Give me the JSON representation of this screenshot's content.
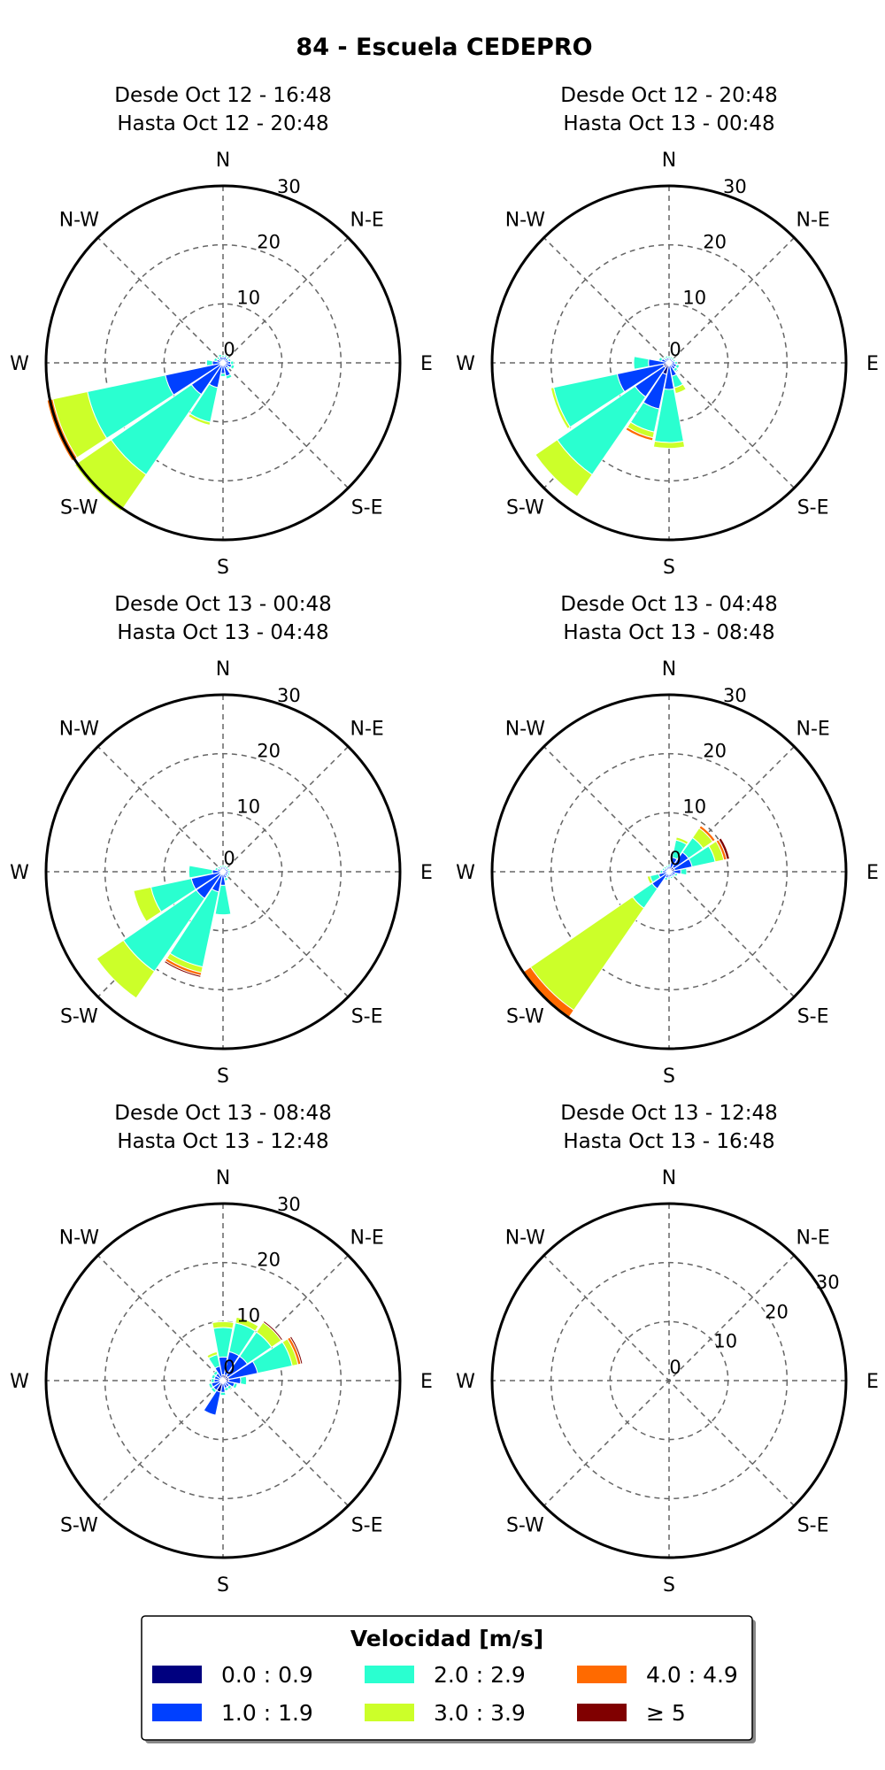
{
  "title": "84 - Escuela CEDEPRO",
  "legend": {
    "title": "Velocidad [m/s]",
    "bins": [
      {
        "label": "0.0 : 0.9",
        "color": "#00007f"
      },
      {
        "label": "1.0 : 1.9",
        "color": "#0040ff"
      },
      {
        "label": "2.0 : 2.9",
        "color": "#2affd0"
      },
      {
        "label": "3.0 : 3.9",
        "color": "#ccff29"
      },
      {
        "label": "4.0 : 4.9",
        "color": "#ff6a00"
      },
      {
        "label": "≥ 5",
        "color": "#800000"
      }
    ]
  },
  "chart_data": [
    {
      "type": "windrose",
      "title_line1": "Desde Oct 12 - 16:48",
      "title_line2": "Hasta Oct 12 - 20:48",
      "directions": [
        "N",
        "N-E",
        "E",
        "S-E",
        "S",
        "S-W",
        "W",
        "N-W"
      ],
      "rmax": 30,
      "rticks": [
        "0",
        "10",
        "20",
        "30"
      ],
      "petals": [
        {
          "dir": 247.5,
          "segments": [
            0.5,
            9.5,
            13.5,
            6,
            1,
            0
          ]
        },
        {
          "dir": 225,
          "segments": [
            0.5,
            6,
            16.5,
            7.5,
            0,
            0
          ]
        },
        {
          "dir": 202.5,
          "segments": [
            0.3,
            4,
            6,
            0.5,
            0,
            0
          ]
        },
        {
          "dir": 270,
          "segments": [
            0.3,
            1.5,
            1,
            0,
            0,
            0
          ]
        },
        {
          "dir": 292.5,
          "segments": [
            0.3,
            0.8,
            0.5,
            0,
            0,
            0
          ]
        },
        {
          "dir": 315,
          "segments": [
            0.3,
            0.6,
            0.4,
            0,
            0,
            0
          ]
        },
        {
          "dir": 337.5,
          "segments": [
            0.3,
            0.8,
            0.4,
            0,
            0,
            0
          ]
        },
        {
          "dir": 0,
          "segments": [
            0.3,
            0.7,
            0.3,
            0,
            0,
            0
          ]
        },
        {
          "dir": 22.5,
          "segments": [
            0.3,
            0.8,
            0.3,
            0,
            0,
            0
          ]
        },
        {
          "dir": 45,
          "segments": [
            0.3,
            0.7,
            0.3,
            0,
            0,
            0
          ]
        },
        {
          "dir": 67.5,
          "segments": [
            0.3,
            0.7,
            0.4,
            0,
            0,
            0
          ]
        },
        {
          "dir": 90,
          "segments": [
            0.3,
            1,
            0.5,
            0,
            0,
            0
          ]
        },
        {
          "dir": 112.5,
          "segments": [
            0.3,
            1.2,
            0.5,
            0,
            0,
            0
          ]
        },
        {
          "dir": 135,
          "segments": [
            0.3,
            0.8,
            0.3,
            0,
            0,
            0
          ]
        },
        {
          "dir": 157.5,
          "segments": [
            0.3,
            2,
            0.5,
            0,
            0,
            0
          ]
        },
        {
          "dir": 180,
          "segments": [
            0.3,
            1.5,
            0.5,
            0,
            0,
            0
          ]
        }
      ]
    },
    {
      "type": "windrose",
      "title_line1": "Desde Oct 12 - 20:48",
      "title_line2": "Hasta Oct 13 - 00:48",
      "directions": [
        "N",
        "N-E",
        "E",
        "S-E",
        "S",
        "S-W",
        "W",
        "N-W"
      ],
      "rmax": 30,
      "rticks": [
        "0",
        "10",
        "20",
        "30"
      ],
      "petals": [
        {
          "dir": 225,
          "segments": [
            1,
            6,
            16,
            4.5,
            0,
            0
          ]
        },
        {
          "dir": 247.5,
          "segments": [
            1,
            8,
            11,
            0.5,
            0,
            0
          ]
        },
        {
          "dir": 202.5,
          "segments": [
            2,
            6,
            4,
            1,
            0.5,
            0
          ]
        },
        {
          "dir": 180,
          "segments": [
            0.5,
            4,
            9,
            1,
            0,
            0
          ]
        },
        {
          "dir": 270,
          "segments": [
            0.5,
            3,
            2.5,
            0,
            0,
            0
          ]
        },
        {
          "dir": 157.5,
          "segments": [
            0.3,
            2,
            2,
            1,
            0,
            0
          ]
        },
        {
          "dir": 135,
          "segments": [
            0.3,
            1,
            0.5,
            0,
            0,
            0
          ]
        },
        {
          "dir": 112.5,
          "segments": [
            0.3,
            1,
            0.5,
            0,
            0,
            0
          ]
        },
        {
          "dir": 292.5,
          "segments": [
            0.3,
            1,
            0.5,
            0,
            0,
            0
          ]
        },
        {
          "dir": 315,
          "segments": [
            0.3,
            0.6,
            0.3,
            0,
            0,
            0
          ]
        },
        {
          "dir": 337.5,
          "segments": [
            0.3,
            0.6,
            0.3,
            0,
            0,
            0
          ]
        },
        {
          "dir": 0,
          "segments": [
            0.3,
            0.5,
            0.3,
            0,
            0,
            0
          ]
        },
        {
          "dir": 22.5,
          "segments": [
            0.3,
            0.5,
            0.3,
            0,
            0,
            0
          ]
        },
        {
          "dir": 45,
          "segments": [
            0.3,
            0.5,
            0.3,
            0,
            0,
            0
          ]
        },
        {
          "dir": 67.5,
          "segments": [
            0.3,
            0.5,
            0.3,
            0,
            0,
            0
          ]
        },
        {
          "dir": 90,
          "segments": [
            0.3,
            0.7,
            0.4,
            0,
            0,
            0
          ]
        }
      ]
    },
    {
      "type": "windrose",
      "title_line1": "Desde Oct 13 - 00:48",
      "title_line2": "Hasta Oct 13 - 04:48",
      "directions": [
        "N",
        "N-E",
        "E",
        "S-E",
        "S",
        "S-W",
        "W",
        "N-W"
      ],
      "rmax": 30,
      "rticks": [
        "0",
        "10",
        "20",
        "30"
      ],
      "petals": [
        {
          "dir": 225,
          "segments": [
            0.5,
            5,
            15,
            5.5,
            0,
            0
          ]
        },
        {
          "dir": 202.5,
          "segments": [
            0.5,
            3,
            13,
            1,
            0.5,
            0.3
          ]
        },
        {
          "dir": 247.5,
          "segments": [
            0.5,
            5,
            7,
            3,
            0,
            0
          ]
        },
        {
          "dir": 270,
          "segments": [
            0.3,
            1.5,
            4,
            0,
            0,
            0
          ]
        },
        {
          "dir": 180,
          "segments": [
            0.3,
            2,
            5,
            0,
            0,
            0
          ]
        },
        {
          "dir": 157.5,
          "segments": [
            0.3,
            0.8,
            0.5,
            0,
            0,
            0
          ]
        },
        {
          "dir": 135,
          "segments": [
            0.3,
            0.6,
            0.3,
            0,
            0,
            0
          ]
        },
        {
          "dir": 112.5,
          "segments": [
            0.3,
            0.6,
            0.3,
            0,
            0,
            0
          ]
        },
        {
          "dir": 90,
          "segments": [
            0.3,
            0.6,
            0.3,
            0,
            0,
            0
          ]
        },
        {
          "dir": 67.5,
          "segments": [
            0.3,
            0.5,
            0.3,
            0,
            0,
            0
          ]
        },
        {
          "dir": 45,
          "segments": [
            0.3,
            0.5,
            0.3,
            0,
            0,
            0
          ]
        },
        {
          "dir": 22.5,
          "segments": [
            0.3,
            0.5,
            0.3,
            0,
            0,
            0
          ]
        },
        {
          "dir": 0,
          "segments": [
            0.3,
            0.5,
            0.3,
            0,
            0,
            0
          ]
        },
        {
          "dir": 337.5,
          "segments": [
            0.3,
            0.5,
            0.3,
            0,
            0,
            0
          ]
        },
        {
          "dir": 315,
          "segments": [
            0.3,
            0.5,
            0.3,
            0,
            0,
            0
          ]
        },
        {
          "dir": 292.5,
          "segments": [
            0.3,
            0.7,
            0.4,
            0,
            0,
            0
          ]
        }
      ]
    },
    {
      "type": "windrose",
      "title_line1": "Desde Oct 13 - 04:48",
      "title_line2": "Hasta Oct 13 - 08:48",
      "directions": [
        "N",
        "N-E",
        "E",
        "S-E",
        "S",
        "S-W",
        "W",
        "N-W"
      ],
      "rmax": 30,
      "rticks": [
        "0",
        "10",
        "20",
        "30"
      ],
      "petals": [
        {
          "dir": 225,
          "segments": [
            0.5,
            3,
            4,
            21,
            1.5,
            0
          ]
        },
        {
          "dir": 45,
          "segments": [
            1,
            3,
            3,
            2,
            0.5,
            0
          ]
        },
        {
          "dir": 67.5,
          "segments": [
            1,
            3,
            4,
            1.5,
            0.5,
            0.5
          ]
        },
        {
          "dir": 22.5,
          "segments": [
            0.5,
            2,
            3,
            0.5,
            0,
            0
          ]
        },
        {
          "dir": 90,
          "segments": [
            0.5,
            1.5,
            1,
            0,
            0,
            0
          ]
        },
        {
          "dir": 247.5,
          "segments": [
            0.3,
            1.5,
            1.5,
            0.5,
            0,
            0
          ]
        },
        {
          "dir": 112.5,
          "segments": [
            0.3,
            0.8,
            0.4,
            0,
            0,
            0
          ]
        },
        {
          "dir": 135,
          "segments": [
            0.3,
            0.6,
            0.3,
            0,
            0,
            0
          ]
        },
        {
          "dir": 157.5,
          "segments": [
            0.3,
            0.6,
            0.3,
            0,
            0,
            0
          ]
        },
        {
          "dir": 180,
          "segments": [
            0.3,
            0.6,
            0.3,
            0,
            0,
            0
          ]
        },
        {
          "dir": 202.5,
          "segments": [
            0.3,
            0.8,
            0.4,
            0,
            0,
            0
          ]
        },
        {
          "dir": 270,
          "segments": [
            0.3,
            0.8,
            0.4,
            0,
            0,
            0
          ]
        },
        {
          "dir": 292.5,
          "segments": [
            0.3,
            0.6,
            0.3,
            0,
            0,
            0
          ]
        },
        {
          "dir": 315,
          "segments": [
            0.3,
            0.5,
            0.3,
            0,
            0,
            0
          ]
        },
        {
          "dir": 337.5,
          "segments": [
            0.3,
            0.5,
            0.3,
            0,
            0,
            0
          ]
        },
        {
          "dir": 0,
          "segments": [
            0.3,
            0.6,
            0.3,
            0,
            0,
            0
          ]
        }
      ]
    },
    {
      "type": "windrose",
      "title_line1": "Desde Oct 13 - 08:48",
      "title_line2": "Hasta Oct 13 - 12:48",
      "directions": [
        "N",
        "N-E",
        "E",
        "S-E",
        "S",
        "S-W",
        "W",
        "N-W"
      ],
      "rmax": 30,
      "rticks": [
        "0",
        "10",
        "20",
        "30"
      ],
      "petals": [
        {
          "dir": 67.5,
          "segments": [
            1,
            5,
            6,
            1,
            0.5,
            0.3
          ]
        },
        {
          "dir": 45,
          "segments": [
            1,
            4,
            5,
            2,
            0,
            0.3
          ]
        },
        {
          "dir": 22.5,
          "segments": [
            1,
            4,
            5,
            1,
            0,
            0
          ]
        },
        {
          "dir": 0,
          "segments": [
            1,
            3,
            5,
            1,
            0,
            0
          ]
        },
        {
          "dir": 337.5,
          "segments": [
            0.5,
            2,
            2,
            0.5,
            0,
            0
          ]
        },
        {
          "dir": 90,
          "segments": [
            1,
            2,
            1,
            0,
            0,
            0
          ]
        },
        {
          "dir": 202.5,
          "segments": [
            2,
            4,
            0,
            0,
            0,
            0
          ]
        },
        {
          "dir": 180,
          "segments": [
            0.5,
            1.5,
            0.5,
            0,
            0,
            0
          ]
        },
        {
          "dir": 225,
          "segments": [
            0.5,
            1.5,
            0.5,
            0,
            0,
            0
          ]
        },
        {
          "dir": 247.5,
          "segments": [
            0.5,
            1.5,
            0.5,
            0,
            0,
            0
          ]
        },
        {
          "dir": 270,
          "segments": [
            0.5,
            1,
            0.5,
            0,
            0,
            0
          ]
        },
        {
          "dir": 292.5,
          "segments": [
            0.5,
            1,
            0.5,
            0,
            0,
            0
          ]
        },
        {
          "dir": 315,
          "segments": [
            0.5,
            1,
            0.5,
            0,
            0,
            0
          ]
        },
        {
          "dir": 112.5,
          "segments": [
            0.5,
            1.5,
            0.5,
            0,
            0,
            0
          ]
        },
        {
          "dir": 135,
          "segments": [
            0.3,
            1,
            0.5,
            0,
            0,
            0
          ]
        },
        {
          "dir": 157.5,
          "segments": [
            0.3,
            1,
            0.5,
            0,
            0,
            0
          ]
        }
      ]
    },
    {
      "type": "windrose",
      "title_line1": "Desde Oct 13 - 12:48",
      "title_line2": "Hasta Oct 13 - 16:48",
      "directions": [
        "N",
        "N-E",
        "E",
        "S-E",
        "S",
        "S-W",
        "W",
        "N-W"
      ],
      "rmax": 30,
      "rticks": [
        "0",
        "10",
        "20",
        "30"
      ],
      "rtick_angle": 60,
      "petals": []
    }
  ]
}
